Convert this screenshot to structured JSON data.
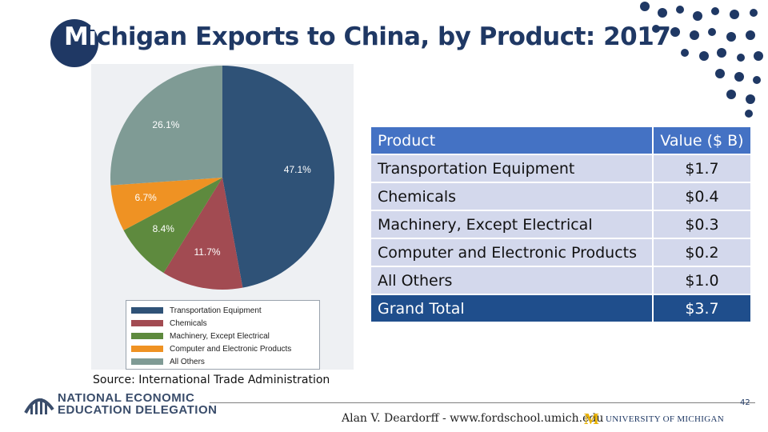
{
  "slide": {
    "title": "Michigan Exports to China, by Product: 2017",
    "source": "Source:  International Trade Administration",
    "page_number": "42",
    "credit": "Alan V. Deardorff - www.fordschool.umich.edu",
    "org_line1": "NATIONAL ECONOMIC",
    "org_line2": "EDUCATION DELEGATION",
    "umich_mark": "M",
    "university": "UNIVERSITY OF MICHIGAN"
  },
  "chart_data": {
    "type": "pie",
    "categories": [
      "Transportation Equipment",
      "Chemicals",
      "Machinery, Except Electrical",
      "Computer and Electronic Products",
      "All Others"
    ],
    "values": [
      47.1,
      11.7,
      8.4,
      6.7,
      26.1
    ],
    "labels": [
      "47.1%",
      "11.7%",
      "8.4%",
      "6.7%",
      "26.1%"
    ],
    "colors": [
      "#2f5277",
      "#a24b52",
      "#5e8a3e",
      "#ef9223",
      "#7f9b95"
    ],
    "legend_position": "bottom"
  },
  "table": {
    "headers": [
      "Product",
      "Value ($ B)"
    ],
    "rows": [
      [
        "Transportation Equipment",
        "$1.7"
      ],
      [
        "Chemicals",
        "$0.4"
      ],
      [
        "Machinery, Except Electrical",
        "$0.3"
      ],
      [
        "Computer and Electronic Products",
        "$0.2"
      ],
      [
        "All Others",
        "$1.0"
      ]
    ],
    "total": [
      "Grand Total",
      "$3.7"
    ]
  }
}
